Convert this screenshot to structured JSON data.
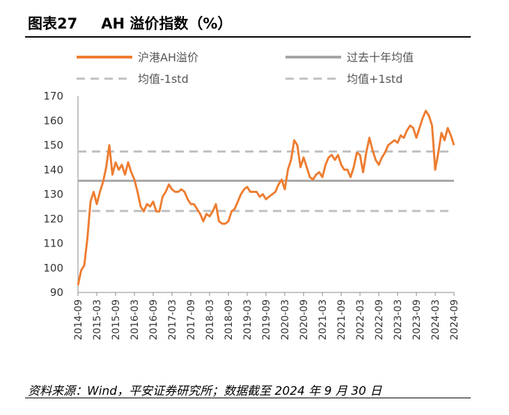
{
  "header": {
    "figure_number": "图表27",
    "title": "AH 溢价指数（%）"
  },
  "source": "资料来源：Wind，平安证券研究所；数据截至 2024 年 9 月 30 日",
  "colors": {
    "series_main": "#ED7D31",
    "mean_line": "#A6A6A6",
    "std_lines": "#BFBFBF"
  },
  "chart_data": {
    "type": "line",
    "legend_placement": "top",
    "ylim": [
      90,
      170
    ],
    "yticks": [
      "90",
      "100",
      "110",
      "120",
      "130",
      "140",
      "150",
      "160",
      "170"
    ],
    "xlim": [
      "2014-09",
      "2024-09"
    ],
    "xticks": [
      "2014-09",
      "2015-03",
      "2015-09",
      "2016-03",
      "2016-09",
      "2017-03",
      "2017-09",
      "2018-03",
      "2018-09",
      "2019-03",
      "2019-09",
      "2020-03",
      "2020-09",
      "2021-03",
      "2021-09",
      "2022-03",
      "2022-09",
      "2023-03",
      "2023-09",
      "2024-03",
      "2024-09"
    ],
    "series": [
      {
        "name": "沪港AH溢价",
        "x": [
          "2014-09",
          "2014-10",
          "2014-11",
          "2014-12",
          "2015-01",
          "2015-02",
          "2015-03",
          "2015-04",
          "2015-05",
          "2015-06",
          "2015-07",
          "2015-08",
          "2015-09",
          "2015-10",
          "2015-11",
          "2015-12",
          "2016-01",
          "2016-02",
          "2016-03",
          "2016-04",
          "2016-05",
          "2016-06",
          "2016-07",
          "2016-08",
          "2016-09",
          "2016-10",
          "2016-11",
          "2016-12",
          "2017-01",
          "2017-02",
          "2017-03",
          "2017-04",
          "2017-05",
          "2017-06",
          "2017-07",
          "2017-08",
          "2017-09",
          "2017-10",
          "2017-11",
          "2017-12",
          "2018-01",
          "2018-02",
          "2018-03",
          "2018-04",
          "2018-05",
          "2018-06",
          "2018-07",
          "2018-08",
          "2018-09",
          "2018-10",
          "2018-11",
          "2018-12",
          "2019-01",
          "2019-02",
          "2019-03",
          "2019-04",
          "2019-05",
          "2019-06",
          "2019-07",
          "2019-08",
          "2019-09",
          "2019-10",
          "2019-11",
          "2019-12",
          "2020-01",
          "2020-02",
          "2020-03",
          "2020-04",
          "2020-05",
          "2020-06",
          "2020-07",
          "2020-08",
          "2020-09",
          "2020-10",
          "2020-11",
          "2020-12",
          "2021-01",
          "2021-02",
          "2021-03",
          "2021-04",
          "2021-05",
          "2021-06",
          "2021-07",
          "2021-08",
          "2021-09",
          "2021-10",
          "2021-11",
          "2021-12",
          "2022-01",
          "2022-02",
          "2022-03",
          "2022-04",
          "2022-05",
          "2022-06",
          "2022-07",
          "2022-08",
          "2022-09",
          "2022-10",
          "2022-11",
          "2022-12",
          "2023-01",
          "2023-02",
          "2023-03",
          "2023-04",
          "2023-05",
          "2023-06",
          "2023-07",
          "2023-08",
          "2023-09",
          "2023-10",
          "2023-11",
          "2023-12",
          "2024-01",
          "2024-02",
          "2024-03",
          "2024-04",
          "2024-05",
          "2024-06",
          "2024-07",
          "2024-08",
          "2024-09"
        ],
        "values": [
          93,
          99,
          101,
          112,
          127,
          131,
          126,
          131,
          135,
          141,
          150,
          138,
          143,
          140,
          142,
          138,
          143,
          139,
          136,
          131,
          125,
          123,
          126,
          125,
          127,
          123,
          123,
          129,
          131,
          134,
          132,
          131,
          131,
          132,
          131,
          128,
          126,
          126,
          124,
          122,
          119,
          122,
          121,
          123,
          126,
          119,
          118,
          118,
          119,
          123,
          124,
          127,
          130,
          132,
          133,
          131,
          131,
          131,
          129,
          130,
          128,
          129,
          130,
          131,
          134,
          136,
          132,
          140,
          144,
          152,
          150,
          141,
          145,
          141,
          137,
          136,
          138,
          139,
          137,
          142,
          145,
          146,
          144,
          146,
          142,
          140,
          140,
          137,
          141,
          147,
          146,
          139,
          147,
          153,
          148,
          144,
          142,
          145,
          147,
          150,
          151,
          152,
          151,
          154,
          153,
          156,
          158,
          157,
          153,
          157,
          161,
          164,
          162,
          158,
          140,
          147,
          155,
          152,
          157,
          154,
          150
        ]
      }
    ],
    "reference_lines": [
      {
        "name": "过去十年均值",
        "y": 135.5,
        "style": "solid"
      },
      {
        "name": "均值-1std",
        "y": 123.2,
        "style": "dashed"
      },
      {
        "name": "均值+1std",
        "y": 147.4,
        "style": "dashed"
      }
    ],
    "legend": [
      "沪港AH溢价",
      "过去十年均值",
      "均值-1std",
      "均值+1std"
    ]
  }
}
